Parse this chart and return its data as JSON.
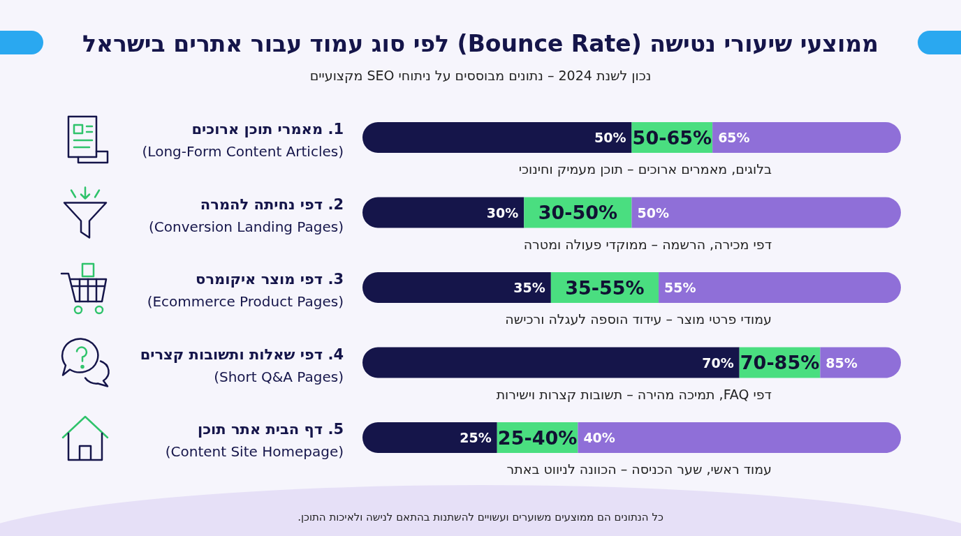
{
  "chart_data": {
    "type": "bar",
    "orientation": "horizontal",
    "stacked": true,
    "title": "ממוצעי שיעורי נטישה (Bounce Rate) לפי סוג עמוד עבור אתרים בישראל",
    "subtitle": "נכון לשנת 2024 – נתונים מבוססים על ניתוחי SEO מקצועיים",
    "categories": [
      "1. מאמרי תוכן ארוכים\n(Long-Form Content Articles)",
      "2. דפי נחיתה להמרה\n(Conversion Landing Pages)",
      "3. דפי מוצר איקומרס\n(Ecommerce Product Pages)",
      "4. דפי שאלות ותשובות קצרים\n(Short Q&A Pages)",
      "5. דף הבית אתר תוכן\n(Content Site Homepage)"
    ],
    "series": [
      {
        "color": "#15154a",
        "values": [
          50,
          30,
          35,
          70,
          25
        ],
        "value_labels": [
          "50%",
          "30%",
          "35%",
          "70%",
          "25%"
        ]
      },
      {
        "color": "#4ade80",
        "values": [
          15,
          20,
          20,
          15,
          15
        ]
      },
      {
        "color": "#8f6fd8",
        "values": [
          35,
          50,
          45,
          15,
          60
        ]
      }
    ],
    "xlim": [
      0,
      100
    ],
    "tick_labels": "y",
    "annotations": [
      "בלוגים, מאמרים ארוכים – תוכן מעמיק וחינוכי",
      "דפי מכירה, הרשמה – ממוקדי פעולה ומטרה",
      "עמודי פרטי מוצר – עידוד הוספה לעגלה ורכישה",
      "דפי FAQ, תמיכה מהירה – תשובות קצרות וישירות",
      "עמוד ראשי, שער הכניסה – הכוונה לניווט באתר",
      "כל הנתונים הם ממוצעים משוערים ועשויים להשתנות בהתאם לנישה ולאיכות התוכן.",
      "50-65%",
      "30-50%",
      "35-55%",
      "70-85%",
      "25-40%",
      {
        "text": "65%",
        "x": 65,
        "y": "1. מאמרי תוכן ארוכים\n(Long-Form Content Articles)"
      },
      {
        "text": "50%",
        "x": 50,
        "y": "2. דפי נחיתה להמרה\n(Conversion Landing Pages)"
      },
      {
        "text": "55%",
        "x": 55,
        "y": "3. דפי מוצר איקומרס\n(Ecommerce Product Pages)"
      },
      {
        "text": "85%",
        "x": 85,
        "y": "4. דפי שאלות ותשובות קצרים\n(Short Q&A Pages)"
      },
      {
        "text": "40%",
        "x": 40,
        "y": "5. דף הבית אתר תוכן\n(Content Site Homepage)"
      }
    ]
  }
}
